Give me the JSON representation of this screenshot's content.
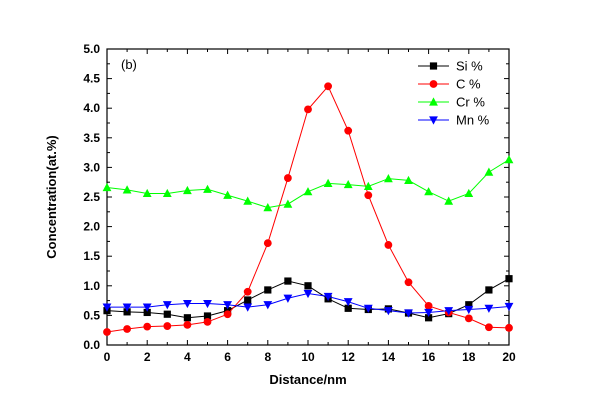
{
  "chart_data": {
    "type": "line",
    "panel_label": "(b)",
    "xlabel": "Distance/nm",
    "ylabel": "Concentration(at.%)",
    "xlim": [
      0,
      20
    ],
    "ylim": [
      0,
      5
    ],
    "x_ticks": [
      "0",
      "2",
      "4",
      "6",
      "8",
      "10",
      "12",
      "14",
      "16",
      "18",
      "20"
    ],
    "y_ticks": [
      "0.0",
      "0.5",
      "1.0",
      "1.5",
      "2.0",
      "2.5",
      "3.0",
      "3.5",
      "4.0",
      "4.5",
      "5.0"
    ],
    "x": [
      0,
      1,
      2,
      3,
      4,
      5,
      6,
      7,
      8,
      9,
      10,
      11,
      12,
      13,
      14,
      15,
      16,
      17,
      18,
      19,
      20
    ],
    "grid": false,
    "legend_position": "top-right",
    "series": [
      {
        "name": "Si %",
        "marker": "square",
        "color": "#000000",
        "line_color": "#000000",
        "values": [
          0.58,
          0.56,
          0.55,
          0.52,
          0.46,
          0.49,
          0.58,
          0.76,
          0.93,
          1.08,
          1.0,
          0.78,
          0.62,
          0.6,
          0.61,
          0.54,
          0.46,
          0.53,
          0.68,
          0.93,
          1.12
        ]
      },
      {
        "name": "C %",
        "marker": "circle",
        "color": "#ff0000",
        "line_color": "#ff0000",
        "values": [
          0.22,
          0.27,
          0.31,
          0.32,
          0.34,
          0.39,
          0.52,
          0.9,
          1.72,
          2.82,
          3.98,
          4.37,
          3.62,
          2.53,
          1.69,
          1.06,
          0.66,
          0.55,
          0.45,
          0.3,
          0.29
        ]
      },
      {
        "name": "Cr %",
        "marker": "triangle-up",
        "color": "#00ff00",
        "line_color": "#00ff00",
        "values": [
          2.66,
          2.62,
          2.56,
          2.56,
          2.61,
          2.63,
          2.53,
          2.43,
          2.32,
          2.38,
          2.59,
          2.73,
          2.71,
          2.68,
          2.81,
          2.78,
          2.59,
          2.43,
          2.56,
          2.92,
          3.13
        ]
      },
      {
        "name": "Mn %",
        "marker": "triangle-down",
        "color": "#0000ff",
        "line_color": "#0000ff",
        "values": [
          0.64,
          0.64,
          0.64,
          0.68,
          0.7,
          0.7,
          0.68,
          0.64,
          0.68,
          0.79,
          0.87,
          0.82,
          0.73,
          0.62,
          0.58,
          0.54,
          0.55,
          0.58,
          0.6,
          0.62,
          0.65
        ]
      }
    ]
  }
}
